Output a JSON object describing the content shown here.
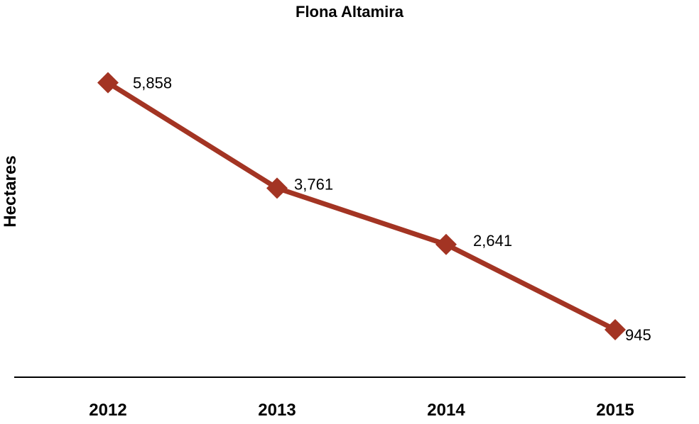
{
  "chart_data": {
    "type": "line",
    "title": "Flona Altamira",
    "xlabel": "",
    "ylabel": "Hectares",
    "categories": [
      "2012",
      "2013",
      "2014",
      "2015"
    ],
    "series": [
      {
        "values": [
          5858,
          3761,
          2641,
          945
        ],
        "data_labels": [
          "5,858",
          "3,761",
          "2,641",
          "945"
        ],
        "color": "#A33423",
        "marker": "diamond"
      }
    ],
    "ylim": [
      0,
      7500
    ],
    "grid": false,
    "legend": "none",
    "axis_color": "#000000"
  }
}
